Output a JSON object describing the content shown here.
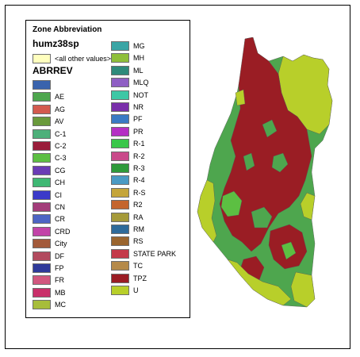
{
  "legend": {
    "title": "Zone Abbreviation",
    "layer": "humz38sp",
    "other": {
      "label": "<all other values>",
      "color": "#ffffbe"
    },
    "field": "ABRREV",
    "left_column": [
      {
        "label": "",
        "color": "#3a63ad"
      },
      {
        "label": "AE",
        "color": "#4ea64e"
      },
      {
        "label": "AG",
        "color": "#d35a4f"
      },
      {
        "label": "AV",
        "color": "#6a9a3c"
      },
      {
        "label": "C-1",
        "color": "#4db07a"
      },
      {
        "label": "C-2",
        "color": "#9a1d3a"
      },
      {
        "label": "C-3",
        "color": "#5cbf42"
      },
      {
        "label": "CG",
        "color": "#6a3bb5"
      },
      {
        "label": "CH",
        "color": "#3fb874"
      },
      {
        "label": "CI",
        "color": "#3b3ac9"
      },
      {
        "label": "CN",
        "color": "#a33d7a"
      },
      {
        "label": "CR",
        "color": "#4d65c4"
      },
      {
        "label": "CRD",
        "color": "#c243a8"
      },
      {
        "label": "City",
        "color": "#a35a3a"
      },
      {
        "label": "DF",
        "color": "#b24a5e"
      },
      {
        "label": "FP",
        "color": "#2e3a9a"
      },
      {
        "label": "FR",
        "color": "#d1577f"
      },
      {
        "label": "MB",
        "color": "#c92f6a"
      },
      {
        "label": "MC",
        "color": "#a7bd3a"
      }
    ],
    "right_column": [
      {
        "label": "MG",
        "color": "#3aa5a5"
      },
      {
        "label": "MH",
        "color": "#8fbf3a"
      },
      {
        "label": "ML",
        "color": "#2e8a7a"
      },
      {
        "label": "MLQ",
        "color": "#8f5fc4"
      },
      {
        "label": "NOT",
        "color": "#3ec7a5"
      },
      {
        "label": "NR",
        "color": "#7a2faa"
      },
      {
        "label": "PF",
        "color": "#3a7ac4"
      },
      {
        "label": "PR",
        "color": "#b52fc4"
      },
      {
        "label": "R-1",
        "color": "#3ac74a"
      },
      {
        "label": "R-2",
        "color": "#c94a8a"
      },
      {
        "label": "R-3",
        "color": "#2e9a3a"
      },
      {
        "label": "R-4",
        "color": "#4a9ac4"
      },
      {
        "label": "R-S",
        "color": "#c4a53a"
      },
      {
        "label": "R2",
        "color": "#c4652e"
      },
      {
        "label": "RA",
        "color": "#a59a3a"
      },
      {
        "label": "RM",
        "color": "#2e6a9a"
      },
      {
        "label": "RS",
        "color": "#9a652e"
      },
      {
        "label": "STATE PARK",
        "color": "#c43a4a"
      },
      {
        "label": "TC",
        "color": "#b58a4a"
      },
      {
        "label": "TPZ",
        "color": "#9a1d24"
      },
      {
        "label": "U",
        "color": "#b8cf2a"
      }
    ]
  },
  "map_colors": {
    "tpz": "#9a1d24",
    "agriculture": "#4ea64e",
    "unclassified": "#b8cf2a",
    "residential": "#5cbf42",
    "outline": "#555555"
  }
}
